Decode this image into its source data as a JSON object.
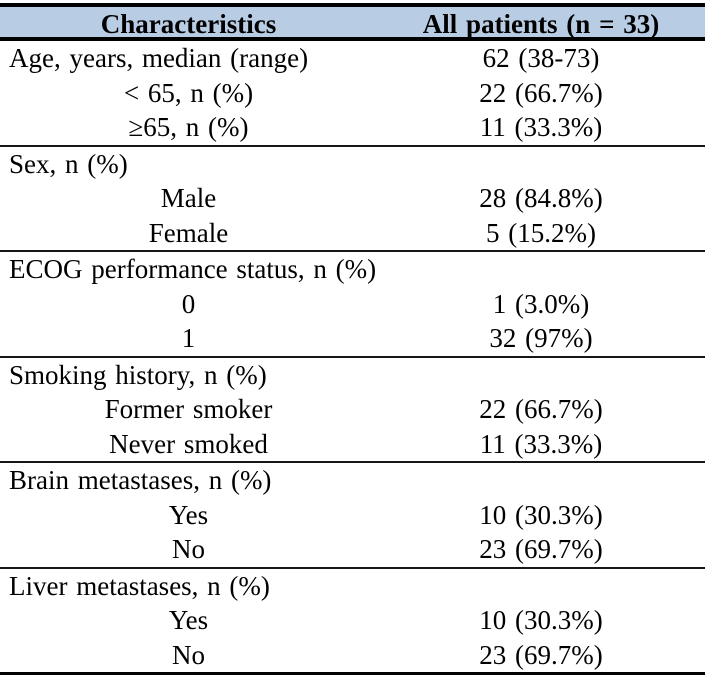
{
  "colors": {
    "header_bg": "#b8cce4",
    "rule": "#000000",
    "text": "#000000"
  },
  "table": {
    "columns": [
      "Characteristics",
      "All patients (n = 33)"
    ],
    "sections": [
      {
        "rows": [
          {
            "type": "group",
            "label": "Age, years, median (range)",
            "value": "62 (38-73)"
          },
          {
            "type": "item",
            "label": "< 65, n (%)",
            "value": "22 (66.7%)"
          },
          {
            "type": "item",
            "label": "≥65, n (%)",
            "value": "11 (33.3%)"
          }
        ]
      },
      {
        "rows": [
          {
            "type": "group",
            "label": "Sex, n (%)",
            "value": ""
          },
          {
            "type": "item",
            "label": "Male",
            "value": "28 (84.8%)"
          },
          {
            "type": "item",
            "label": "Female",
            "value": "5 (15.2%)"
          }
        ]
      },
      {
        "rows": [
          {
            "type": "group",
            "label": "ECOG performance status, n (%)",
            "value": ""
          },
          {
            "type": "item",
            "label": "0",
            "value": "1 (3.0%)"
          },
          {
            "type": "item",
            "label": "1",
            "value": "32 (97%)"
          }
        ]
      },
      {
        "rows": [
          {
            "type": "group",
            "label": "Smoking history, n (%)",
            "value": ""
          },
          {
            "type": "item",
            "label": "Former smoker",
            "value": "22 (66.7%)"
          },
          {
            "type": "item",
            "label": "Never smoked",
            "value": "11 (33.3%)"
          }
        ]
      },
      {
        "rows": [
          {
            "type": "group",
            "label": "Brain metastases, n (%)",
            "value": ""
          },
          {
            "type": "item",
            "label": "Yes",
            "value": "10 (30.3%)"
          },
          {
            "type": "item",
            "label": "No",
            "value": "23 (69.7%)"
          }
        ]
      },
      {
        "rows": [
          {
            "type": "group",
            "label": "Liver metastases, n (%)",
            "value": ""
          },
          {
            "type": "item",
            "label": "Yes",
            "value": "10 (30.3%)"
          },
          {
            "type": "item",
            "label": "No",
            "value": "23 (69.7%)"
          }
        ]
      }
    ]
  }
}
